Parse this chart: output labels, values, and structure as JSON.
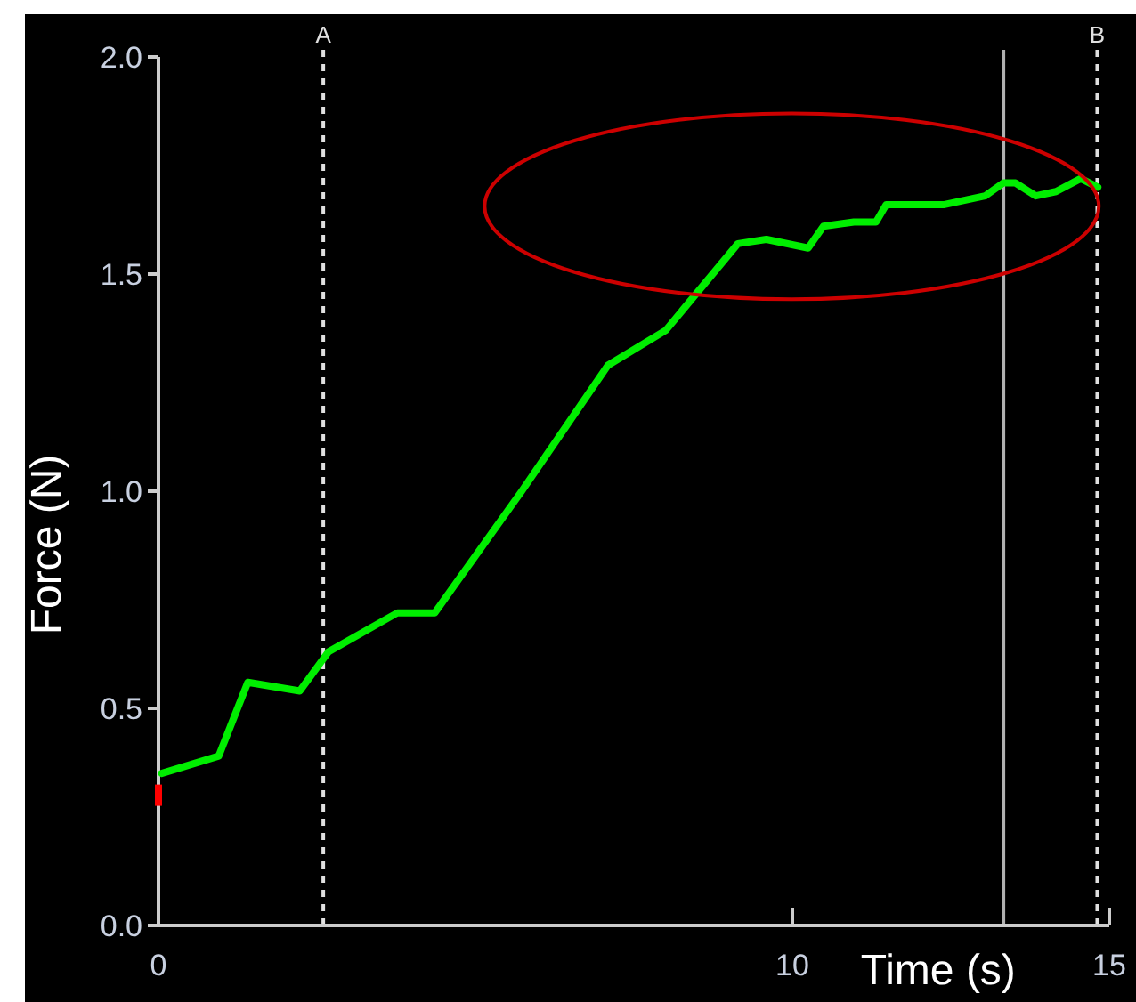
{
  "chart_data": {
    "type": "line",
    "xlabel": "Time (s)",
    "ylabel": "Force (N)",
    "xlim": [
      0,
      15
    ],
    "xticks": [
      0,
      10,
      15
    ],
    "ylim": [
      0,
      2
    ],
    "yticks": [
      {
        "value": 0,
        "label": "0.0"
      },
      {
        "value": 0.5,
        "label": "0.5"
      },
      {
        "value": 1,
        "label": "1.0"
      },
      {
        "value": 1.5,
        "label": "1.5"
      },
      {
        "value": 2,
        "label": "2.0"
      }
    ],
    "grid": false,
    "line_style": "solid",
    "series": [
      {
        "color": "#00ee00",
        "x": [
          0.05,
          0.95,
          1.41,
          2.23,
          2.68,
          3.77,
          4.36,
          5.73,
          7.09,
          8.0,
          9.14,
          9.59,
          10.25,
          10.49,
          10.97,
          11.32,
          11.48,
          12.4,
          13.04,
          13.33,
          13.52,
          13.84,
          14.16,
          14.55,
          14.82
        ],
        "values": [
          0.35,
          0.39,
          0.56,
          0.54,
          0.63,
          0.72,
          0.72,
          1.0,
          1.29,
          1.37,
          1.57,
          1.58,
          1.56,
          1.61,
          1.62,
          1.62,
          1.66,
          1.66,
          1.68,
          1.71,
          1.71,
          1.68,
          1.69,
          1.72,
          1.7
        ]
      },
      {
        "type": "scatter",
        "color": "#ff0000",
        "x": [
          0
        ],
        "values": [
          0.3
        ]
      }
    ],
    "ref_lines": [
      {
        "axis": "x",
        "value": 2.6,
        "label": "A",
        "color": "#e0e0e0",
        "line_style": "dashed"
      },
      {
        "axis": "x",
        "value": 14.81,
        "label": "B",
        "color": "#e0e0e0",
        "line_style": "dashed"
      },
      {
        "axis": "x",
        "value": 13.33,
        "label": null,
        "color": "#b0b0b0",
        "line_style": "solid"
      }
    ]
  }
}
